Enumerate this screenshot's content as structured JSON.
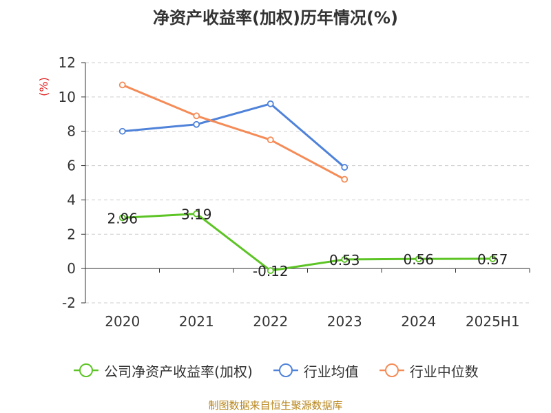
{
  "chart_data": {
    "type": "line",
    "title": "净资产收益率(加权)历年情况(%)",
    "ylabel": "(%)",
    "categories": [
      "2020",
      "2021",
      "2022",
      "2023",
      "2024",
      "2025H1"
    ],
    "ylim": [
      -2,
      12
    ],
    "yticks": [
      -2,
      0,
      2,
      4,
      6,
      8,
      10,
      12
    ],
    "grid": true,
    "legend_position": "bottom",
    "series": [
      {
        "name": "公司净资产收益率(加权)",
        "color": "#5cc424",
        "values": [
          2.96,
          3.19,
          -0.12,
          0.53,
          0.56,
          0.57
        ],
        "labels": [
          "2.96",
          "3.19",
          "-0.12",
          "0.53",
          "0.56",
          "0.57"
        ]
      },
      {
        "name": "行业均值",
        "color": "#4f82d9",
        "values": [
          8.0,
          8.4,
          9.6,
          5.9,
          null,
          null
        ]
      },
      {
        "name": "行业中位数",
        "color": "#f58b56",
        "values": [
          10.7,
          8.9,
          7.5,
          5.2,
          null,
          null
        ]
      }
    ]
  },
  "source": "制图数据来自恒生聚源数据库"
}
